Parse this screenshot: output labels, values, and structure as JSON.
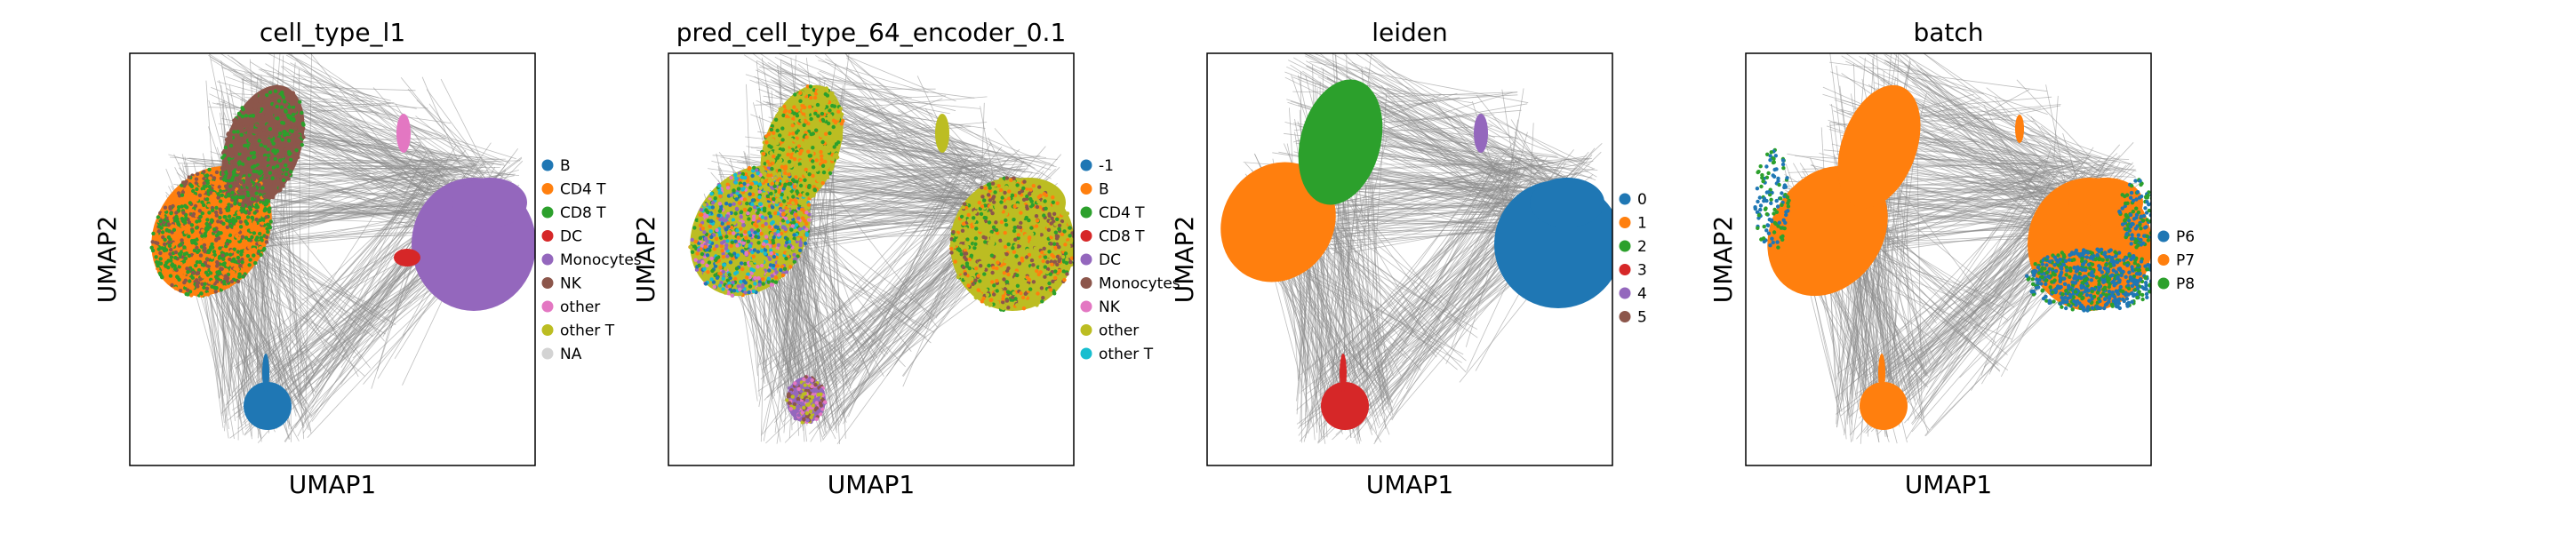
{
  "chart_data": [
    {
      "type": "scatter",
      "title": "cell_type_l1",
      "xlabel": "UMAP1",
      "ylabel": "UMAP2",
      "grid": false,
      "legend_position": "right",
      "categories": [
        "B",
        "CD4 T",
        "CD8 T",
        "DC",
        "Monocytes",
        "NK",
        "other",
        "other T",
        "NA"
      ],
      "colors": [
        "#1f77b4",
        "#ff7f0e",
        "#2ca02c",
        "#d62728",
        "#9467bd",
        "#8c564b",
        "#e377c2",
        "#bcbd22",
        "#d3d3d3"
      ],
      "clusters": [
        {
          "label": "CD4 T",
          "x": [
            -7,
            -1
          ],
          "y": [
            3,
            9
          ]
        },
        {
          "label": "NK",
          "x": [
            -4,
            -2
          ],
          "y": [
            8,
            10
          ]
        },
        {
          "label": "B",
          "x": [
            -3.5,
            -2.5
          ],
          "y": [
            -7,
            -6
          ]
        },
        {
          "label": "Monocytes",
          "x": [
            5,
            8
          ],
          "y": [
            1,
            4
          ]
        },
        {
          "label": "other",
          "x": [
            1.2,
            1.8
          ],
          "y": [
            7.5,
            8.5
          ]
        }
      ]
    },
    {
      "type": "scatter",
      "title": "pred_cell_type_64_encoder_0.1",
      "xlabel": "UMAP1",
      "ylabel": "UMAP2",
      "grid": false,
      "legend_position": "right",
      "categories": [
        "-1",
        "B",
        "CD4 T",
        "CD8 T",
        "DC",
        "Monocytes",
        "NK",
        "other",
        "other T"
      ],
      "colors": [
        "#1f77b4",
        "#ff7f0e",
        "#2ca02c",
        "#d62728",
        "#9467bd",
        "#8c564b",
        "#e377c2",
        "#bcbd22",
        "#17becf"
      ],
      "clusters": [
        {
          "label": "other",
          "x": [
            -7,
            -1
          ],
          "y": [
            3,
            9
          ]
        },
        {
          "label": "other",
          "x": [
            5,
            8
          ],
          "y": [
            1,
            4
          ]
        },
        {
          "label": "DC",
          "x": [
            -3.5,
            -2.5
          ],
          "y": [
            -7,
            -6
          ]
        }
      ]
    },
    {
      "type": "scatter",
      "title": "leiden",
      "xlabel": "UMAP1",
      "ylabel": "UMAP2",
      "grid": false,
      "legend_position": "right",
      "categories": [
        "0",
        "1",
        "2",
        "3",
        "4",
        "5"
      ],
      "colors": [
        "#1f77b4",
        "#ff7f0e",
        "#2ca02c",
        "#d62728",
        "#9467bd",
        "#8c564b"
      ],
      "clusters": [
        {
          "label": "1",
          "x": [
            -7,
            -4
          ],
          "y": [
            3,
            6
          ]
        },
        {
          "label": "2",
          "x": [
            -4,
            -2
          ],
          "y": [
            6,
            10
          ]
        },
        {
          "label": "3",
          "x": [
            -3.5,
            -2.5
          ],
          "y": [
            -7,
            -6
          ]
        },
        {
          "label": "0",
          "x": [
            5,
            8
          ],
          "y": [
            1,
            4
          ]
        },
        {
          "label": "4",
          "x": [
            1.2,
            1.8
          ],
          "y": [
            7.5,
            8.5
          ]
        }
      ]
    },
    {
      "type": "scatter",
      "title": "batch",
      "xlabel": "UMAP1",
      "ylabel": "UMAP2",
      "grid": false,
      "legend_position": "right",
      "categories": [
        "P6",
        "P7",
        "P8"
      ],
      "colors": [
        "#1f77b4",
        "#ff7f0e",
        "#2ca02c"
      ],
      "clusters": [
        {
          "label": "P7",
          "x": [
            -7,
            -1
          ],
          "y": [
            3,
            9
          ]
        },
        {
          "label": "P7",
          "x": [
            5,
            8
          ],
          "y": [
            1,
            4
          ]
        },
        {
          "label": "P7",
          "x": [
            -3.5,
            -2.5
          ],
          "y": [
            -7,
            -6
          ]
        }
      ]
    }
  ]
}
